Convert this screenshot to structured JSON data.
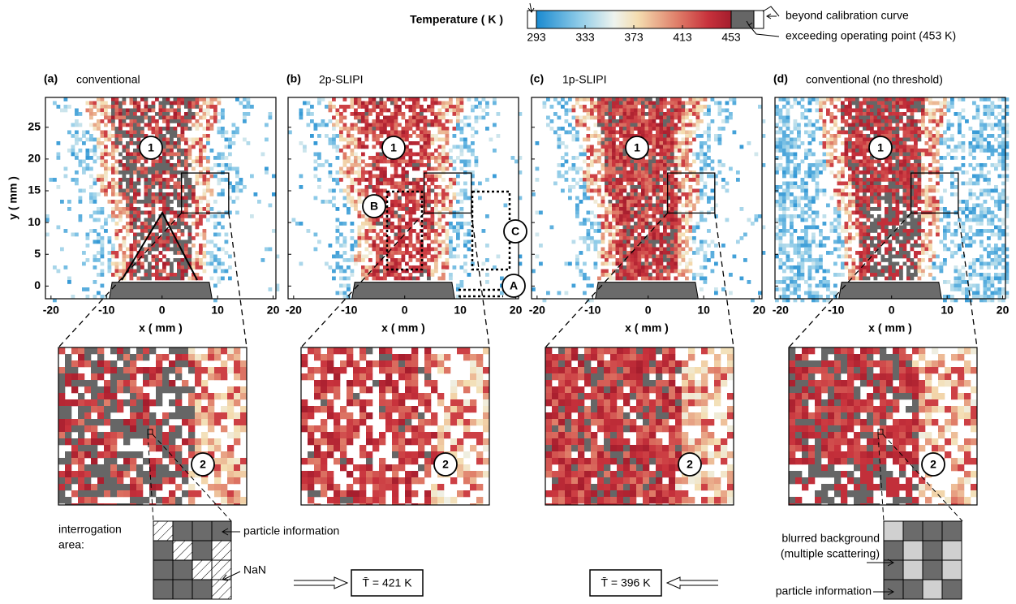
{
  "colorbar": {
    "title": "Temperature ( K )",
    "ticks": [
      293,
      333,
      373,
      413,
      453
    ],
    "lim": [
      293,
      453
    ],
    "notes": [
      "beyond calibration curve",
      "exceeding operating point (453 K)"
    ]
  },
  "axes": {
    "xlabel": "x ( mm )",
    "ylabel": "y ( mm )",
    "xlim": [
      -21,
      20.5
    ],
    "ylim": [
      -2,
      29.7
    ],
    "xticks": [
      -20,
      -10,
      0,
      10,
      20
    ],
    "yticks": [
      0,
      5,
      10,
      15,
      20,
      25
    ]
  },
  "panels": [
    {
      "label": "(a)",
      "title": "conventional"
    },
    {
      "label": "(b)",
      "title": "2p-SLIPI"
    },
    {
      "label": "(c)",
      "title": "1p-SLIPI"
    },
    {
      "label": "(d)",
      "title": "conventional (no threshold)"
    }
  ],
  "markers": {
    "region1": "1",
    "region2": "2",
    "A": "A",
    "B": "B",
    "C": "C"
  },
  "interrogation": {
    "label_lines": [
      "interrogation",
      "area:"
    ],
    "particle": "particle information",
    "nan": "NaN",
    "mean_a": "T̄ = 421 K",
    "mean_c": "T̄ = 396 K",
    "blurred_lines": [
      "blurred background",
      "(multiple scattering)"
    ],
    "particle_d": "particle information"
  }
}
